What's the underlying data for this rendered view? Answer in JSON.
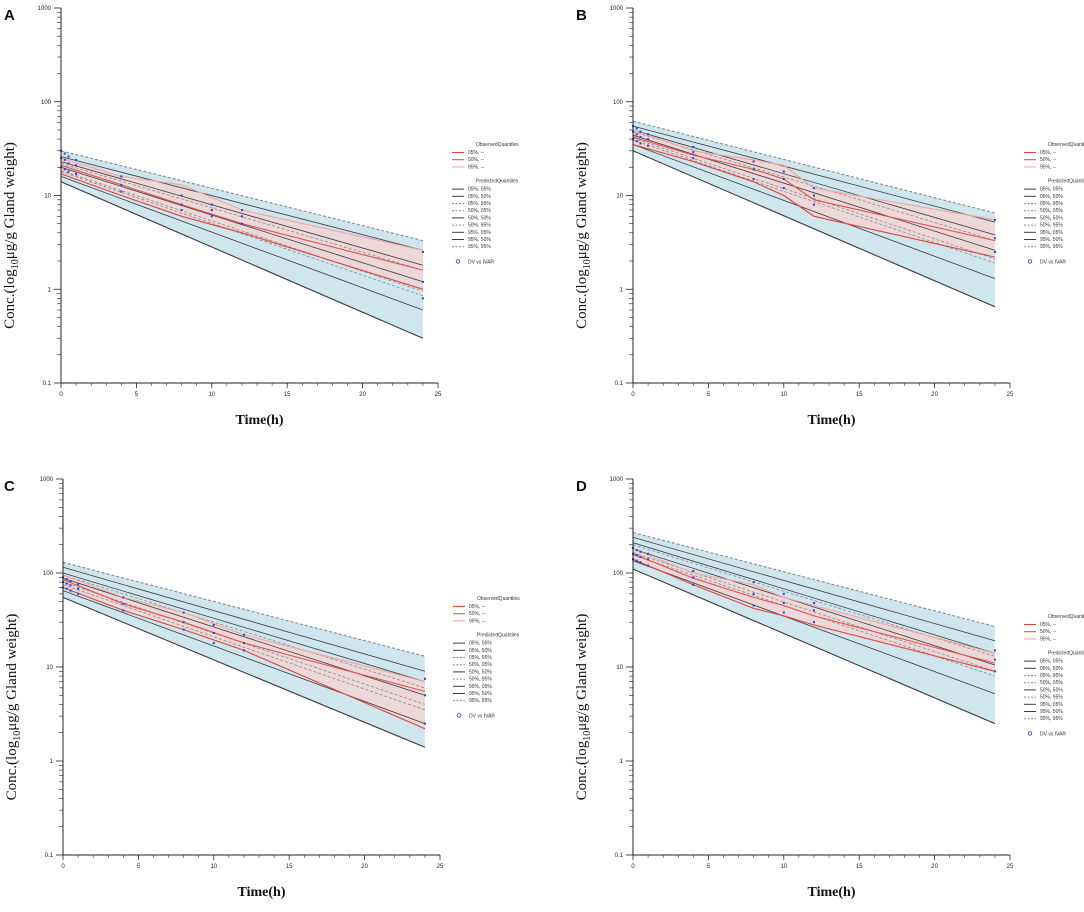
{
  "chart_data": [
    {
      "type": "line",
      "panel": "A",
      "title": "",
      "xlabel": "Time(h)",
      "ylabel_prefix": "Conc.(log",
      "ylabel_sub": "10",
      "ylabel_suffix": "μg/g Gland weight)",
      "yscale": "log",
      "xlim": [
        0,
        25
      ],
      "ylim": [
        0.1,
        1000
      ],
      "xticks": [
        "0",
        "5",
        "10",
        "15",
        "20",
        "25"
      ],
      "yticks": [
        "0.1",
        "1",
        "10",
        "100",
        "1000"
      ],
      "band": {
        "name": "90% prediction interval",
        "x": [
          0,
          24
        ],
        "upper": [
          30,
          3.3
        ],
        "lower": [
          14,
          0.3
        ]
      },
      "predicted_lines": [
        {
          "name": "95%, 95%",
          "style": "dash",
          "x": [
            0,
            24
          ],
          "y": [
            30,
            3.3
          ]
        },
        {
          "name": "95%, 50%",
          "style": "solid",
          "x": [
            0,
            24
          ],
          "y": [
            26,
            2.6
          ]
        },
        {
          "name": "95%, 05%",
          "style": "solid",
          "x": [
            0,
            24
          ],
          "y": [
            23,
            1.8
          ]
        },
        {
          "name": "50%, 95%",
          "style": "dash",
          "x": [
            0,
            24
          ],
          "y": [
            22,
            1.6
          ]
        },
        {
          "name": "50%, 50%",
          "style": "solid",
          "x": [
            0,
            24
          ],
          "y": [
            20,
            1.2
          ]
        },
        {
          "name": "50%, 05%",
          "style": "dash",
          "x": [
            0,
            24
          ],
          "y": [
            18.5,
            0.95
          ]
        },
        {
          "name": "05%, 95%",
          "style": "dash",
          "x": [
            0,
            24
          ],
          "y": [
            18,
            0.85
          ]
        },
        {
          "name": "05%, 50%",
          "style": "solid",
          "x": [
            0,
            24
          ],
          "y": [
            16,
            0.6
          ]
        },
        {
          "name": "05%, 05%",
          "style": "solid",
          "x": [
            0,
            24
          ],
          "y": [
            14,
            0.3
          ]
        }
      ],
      "observed_lines": [
        {
          "name": "95%, --",
          "x": [
            0,
            4,
            8,
            12,
            24
          ],
          "y": [
            25,
            16,
            13,
            7,
            2.6
          ]
        },
        {
          "name": "50%, --",
          "x": [
            0,
            4,
            8,
            12,
            24
          ],
          "y": [
            21,
            13,
            8,
            5,
            1.6
          ]
        },
        {
          "name": "05%, --",
          "x": [
            0,
            4,
            8,
            12,
            24
          ],
          "y": [
            17,
            10,
            6,
            4,
            1.0
          ]
        }
      ],
      "points": {
        "name": "DV vs IVAR",
        "x": [
          0,
          0.25,
          0.5,
          1,
          4,
          8,
          10,
          12,
          24
        ],
        "y": [
          [
            20,
            25,
            30
          ],
          [
            19,
            24,
            28
          ],
          [
            18,
            22,
            26
          ],
          [
            17,
            21,
            24
          ],
          [
            11,
            13,
            16
          ],
          [
            7,
            8,
            10
          ],
          [
            6,
            7,
            8
          ],
          [
            5,
            6,
            7
          ],
          [
            0.8,
            1.2,
            2.5
          ]
        ]
      },
      "legend": {
        "observed_title": "ObservedQuantiles",
        "observed": [
          "05%, --",
          "50%, --",
          "95%, --"
        ],
        "predicted_title": "PredictedQuantiles",
        "predicted": [
          "05%, 05%",
          "05%, 50%",
          "05%, 95%",
          "50%, 05%",
          "50%, 50%",
          "50%, 95%",
          "95%, 05%",
          "95%, 50%",
          "95%, 95%"
        ],
        "points_label": "DV vs IVAR"
      }
    },
    {
      "type": "line",
      "panel": "B",
      "title": "",
      "xlabel": "Time(h)",
      "ylabel_prefix": "Conc.(log",
      "ylabel_sub": "10",
      "ylabel_suffix": "μg/g Gland weight)",
      "yscale": "log",
      "xlim": [
        0,
        25
      ],
      "ylim": [
        0.1,
        1000
      ],
      "xticks": [
        "0",
        "5",
        "10",
        "15",
        "20",
        "25"
      ],
      "yticks": [
        "0.1",
        "1",
        "10",
        "100",
        "1000"
      ],
      "band": {
        "name": "90% prediction interval",
        "x": [
          0,
          24
        ],
        "upper": [
          62,
          6.5
        ],
        "lower": [
          30,
          0.65
        ]
      },
      "predicted_lines": [
        {
          "name": "95%, 95%",
          "style": "dash",
          "x": [
            0,
            24
          ],
          "y": [
            62,
            6.5
          ]
        },
        {
          "name": "95%, 50%",
          "style": "solid",
          "x": [
            0,
            24
          ],
          "y": [
            55,
            5.2
          ]
        },
        {
          "name": "95%, 05%",
          "style": "solid",
          "x": [
            0,
            24
          ],
          "y": [
            50,
            3.8
          ]
        },
        {
          "name": "50%, 95%",
          "style": "dash",
          "x": [
            0,
            24
          ],
          "y": [
            48,
            3.3
          ]
        },
        {
          "name": "50%, 50%",
          "style": "solid",
          "x": [
            0,
            24
          ],
          "y": [
            44,
            2.6
          ]
        },
        {
          "name": "50%, 05%",
          "style": "dash",
          "x": [
            0,
            24
          ],
          "y": [
            41,
            2.1
          ]
        },
        {
          "name": "05%, 95%",
          "style": "dash",
          "x": [
            0,
            24
          ],
          "y": [
            39,
            1.9
          ]
        },
        {
          "name": "05%, 50%",
          "style": "solid",
          "x": [
            0,
            24
          ],
          "y": [
            35,
            1.3
          ]
        },
        {
          "name": "05%, 05%",
          "style": "solid",
          "x": [
            0,
            24
          ],
          "y": [
            30,
            0.65
          ]
        }
      ],
      "observed_lines": [
        {
          "name": "95%, --",
          "x": [
            0,
            4,
            8,
            10,
            12,
            24
          ],
          "y": [
            50,
            30,
            24,
            21,
            12,
            5.5
          ]
        },
        {
          "name": "50%, --",
          "x": [
            0,
            4,
            8,
            10,
            12,
            24
          ],
          "y": [
            42,
            27,
            19,
            15,
            9,
            3.3
          ]
        },
        {
          "name": "05%, --",
          "x": [
            0,
            4,
            8,
            10,
            12,
            24
          ],
          "y": [
            35,
            23,
            14,
            10,
            6,
            2.2
          ]
        }
      ],
      "points": {
        "name": "DV vs IVAR",
        "x": [
          0,
          0.25,
          0.5,
          1,
          4,
          8,
          10,
          12,
          24
        ],
        "y": [
          [
            40,
            48,
            55
          ],
          [
            38,
            45,
            52
          ],
          [
            36,
            42,
            48
          ],
          [
            34,
            40,
            45
          ],
          [
            25,
            29,
            33
          ],
          [
            15,
            19,
            23
          ],
          [
            12,
            15,
            18
          ],
          [
            8,
            10,
            12
          ],
          [
            2.5,
            3.5,
            5.5
          ]
        ]
      },
      "legend": {
        "observed_title": "ObservedQuantiles",
        "observed": [
          "05%, --",
          "50%, --",
          "95%, --"
        ],
        "predicted_title": "PredictedQuantiles",
        "predicted": [
          "05%, 05%",
          "05%, 50%",
          "05%, 95%",
          "50%, 05%",
          "50%, 50%",
          "50%, 95%",
          "95%, 05%",
          "95%, 50%",
          "95%, 95%"
        ],
        "points_label": "DV vs IVAR"
      }
    },
    {
      "type": "line",
      "panel": "C",
      "title": "",
      "xlabel": "Time(h)",
      "ylabel_prefix": "Conc.(log",
      "ylabel_sub": "10",
      "ylabel_suffix": "μg/g Gland weight)",
      "yscale": "log",
      "xlim": [
        0,
        25
      ],
      "ylim": [
        0.1,
        1000
      ],
      "xticks": [
        "0",
        "5",
        "10",
        "15",
        "20",
        "25"
      ],
      "yticks": [
        "0.1",
        "1",
        "10",
        "100",
        "1000"
      ],
      "band": {
        "name": "90% prediction interval",
        "x": [
          0,
          24
        ],
        "upper": [
          130,
          13
        ],
        "lower": [
          55,
          1.4
        ]
      },
      "predicted_lines": [
        {
          "name": "95%, 95%",
          "style": "dash",
          "x": [
            0,
            24
          ],
          "y": [
            130,
            13
          ]
        },
        {
          "name": "95%, 50%",
          "style": "solid",
          "x": [
            0,
            24
          ],
          "y": [
            115,
            9
          ]
        },
        {
          "name": "95%, 05%",
          "style": "solid",
          "x": [
            0,
            24
          ],
          "y": [
            100,
            7
          ]
        },
        {
          "name": "50%, 95%",
          "style": "dash",
          "x": [
            0,
            24
          ],
          "y": [
            95,
            6
          ]
        },
        {
          "name": "50%, 50%",
          "style": "solid",
          "x": [
            0,
            24
          ],
          "y": [
            88,
            5
          ]
        },
        {
          "name": "50%, 05%",
          "style": "dash",
          "x": [
            0,
            24
          ],
          "y": [
            80,
            4
          ]
        },
        {
          "name": "05%, 95%",
          "style": "dash",
          "x": [
            0,
            24
          ],
          "y": [
            75,
            3.5
          ]
        },
        {
          "name": "05%, 50%",
          "style": "solid",
          "x": [
            0,
            24
          ],
          "y": [
            65,
            2.5
          ]
        },
        {
          "name": "05%, 05%",
          "style": "solid",
          "x": [
            0,
            24
          ],
          "y": [
            55,
            1.4
          ]
        }
      ],
      "observed_lines": [
        {
          "name": "95%, --",
          "x": [
            0,
            4,
            8,
            12,
            24
          ],
          "y": [
            95,
            55,
            38,
            22,
            7
          ]
        },
        {
          "name": "50%, --",
          "x": [
            0,
            4,
            8,
            12,
            24
          ],
          "y": [
            85,
            47,
            30,
            18,
            5.5
          ]
        },
        {
          "name": "05%, --",
          "x": [
            0,
            4,
            8,
            12,
            24
          ],
          "y": [
            70,
            40,
            25,
            15,
            2.2
          ]
        }
      ],
      "points": {
        "name": "DV vs IVAR",
        "x": [
          0,
          0.25,
          0.5,
          1,
          4,
          8,
          10,
          12,
          24
        ],
        "y": [
          [
            70,
            80,
            90
          ],
          [
            68,
            77,
            86
          ],
          [
            65,
            74,
            82
          ],
          [
            60,
            68,
            76
          ],
          [
            40,
            47,
            55
          ],
          [
            25,
            30,
            38
          ],
          [
            18,
            23,
            28
          ],
          [
            15,
            18,
            22
          ],
          [
            2.5,
            5,
            7.5
          ]
        ]
      },
      "legend": {
        "observed_title": "ObservedQuantiles",
        "observed": [
          "05%, --",
          "50%, --",
          "95%, --"
        ],
        "predicted_title": "PredictedQuantiles",
        "predicted": [
          "05%, 05%",
          "05%, 50%",
          "05%, 95%",
          "50%, 05%",
          "50%, 50%",
          "50%, 95%",
          "95%, 05%",
          "95%, 50%",
          "95%, 95%"
        ],
        "points_label": "DV vs IVAR"
      }
    },
    {
      "type": "line",
      "panel": "D",
      "title": "",
      "xlabel": "Time(h)",
      "ylabel_prefix": "Conc.(log",
      "ylabel_sub": "10",
      "ylabel_suffix": "μg/g Gland weight)",
      "yscale": "log",
      "xlim": [
        0,
        25
      ],
      "ylim": [
        0.1,
        1000
      ],
      "xticks": [
        "0",
        "5",
        "10",
        "15",
        "20",
        "25"
      ],
      "yticks": [
        "0.1",
        "1",
        "10",
        "100",
        "1000"
      ],
      "band": {
        "name": "90% prediction interval",
        "x": [
          0,
          24
        ],
        "upper": [
          270,
          27
        ],
        "lower": [
          110,
          2.5
        ]
      },
      "predicted_lines": [
        {
          "name": "95%, 95%",
          "style": "dash",
          "x": [
            0,
            24
          ],
          "y": [
            270,
            27
          ]
        },
        {
          "name": "95%, 50%",
          "style": "solid",
          "x": [
            0,
            24
          ],
          "y": [
            240,
            19
          ]
        },
        {
          "name": "95%, 05%",
          "style": "solid",
          "x": [
            0,
            24
          ],
          "y": [
            210,
            14
          ]
        },
        {
          "name": "50%, 95%",
          "style": "dash",
          "x": [
            0,
            24
          ],
          "y": [
            200,
            13
          ]
        },
        {
          "name": "50%, 50%",
          "style": "solid",
          "x": [
            0,
            24
          ],
          "y": [
            180,
            10.5
          ]
        },
        {
          "name": "50%, 05%",
          "style": "dash",
          "x": [
            0,
            24
          ],
          "y": [
            165,
            9
          ]
        },
        {
          "name": "05%, 95%",
          "style": "dash",
          "x": [
            0,
            24
          ],
          "y": [
            155,
            8
          ]
        },
        {
          "name": "05%, 50%",
          "style": "solid",
          "x": [
            0,
            24
          ],
          "y": [
            135,
            5.2
          ]
        },
        {
          "name": "05%, 05%",
          "style": "solid",
          "x": [
            0,
            24
          ],
          "y": [
            110,
            2.5
          ]
        }
      ],
      "observed_lines": [
        {
          "name": "95%, --",
          "x": [
            0,
            4,
            8,
            10,
            12,
            24
          ],
          "y": [
            180,
            100,
            75,
            55,
            45,
            14
          ]
        },
        {
          "name": "50%, --",
          "x": [
            0,
            4,
            8,
            10,
            12,
            24
          ],
          "y": [
            160,
            88,
            55,
            45,
            35,
            11
          ]
        },
        {
          "name": "05%, --",
          "x": [
            0,
            4,
            8,
            10,
            12,
            24
          ],
          "y": [
            140,
            75,
            42,
            35,
            28,
            9
          ]
        }
      ],
      "points": {
        "name": "DV vs IVAR",
        "x": [
          0,
          0.25,
          0.5,
          1,
          4,
          8,
          10,
          12,
          24
        ],
        "y": [
          [
            140,
            160,
            185
          ],
          [
            135,
            155,
            175
          ],
          [
            130,
            148,
            168
          ],
          [
            120,
            140,
            160
          ],
          [
            75,
            90,
            105
          ],
          [
            45,
            60,
            80
          ],
          [
            38,
            48,
            60
          ],
          [
            30,
            40,
            48
          ],
          [
            9,
            12,
            15
          ]
        ]
      },
      "legend": {
        "observed_title": "ObservedQuantiles",
        "observed": [
          "05%, --",
          "50%, --",
          "95%, --"
        ],
        "predicted_title": "PredictedQuantiles",
        "predicted": [
          "05%, 05%",
          "05%, 50%",
          "05%, 95%",
          "50%, 05%",
          "50%, 50%",
          "50%, 95%",
          "95%, 05%",
          "95%, 50%",
          "95%, 95%"
        ],
        "points_label": "DV vs IVAR"
      }
    }
  ],
  "colors": {
    "band_fill": "#cfe6ef",
    "predicted_line": "#3a3a3a",
    "predicted_light": "#8a8a8a",
    "observed_05": "#d9463c",
    "observed_50": "#e0544a",
    "observed_95": "#f0a6a0",
    "observed_fill": "#f6d2d2",
    "points": "#2a3fd6",
    "axis": "#222222"
  }
}
